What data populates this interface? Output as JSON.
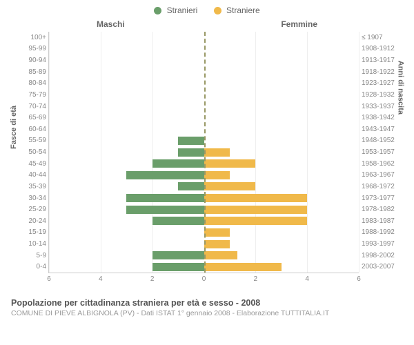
{
  "legend": {
    "male": {
      "label": "Stranieri",
      "color": "#6a9e6a"
    },
    "female": {
      "label": "Straniere",
      "color": "#f0b94a"
    }
  },
  "columns": {
    "left_title": "Maschi",
    "right_title": "Femmine"
  },
  "y_axis_left_title": "Fasce di età",
  "y_axis_right_title": "Anni di nascita",
  "chart": {
    "type": "population-pyramid",
    "x_max": 6,
    "x_ticks": [
      6,
      4,
      2,
      0,
      2,
      4,
      6
    ],
    "bar_height_ratio": 0.72,
    "grid_color": "#eeeeee",
    "axis_color": "#cccccc",
    "center_line_color": "#999966",
    "background_color": "#ffffff",
    "label_fontsize": 10,
    "label_color": "#888888",
    "rows": [
      {
        "age": "100+",
        "birth": "≤ 1907",
        "m": 0,
        "f": 0
      },
      {
        "age": "95-99",
        "birth": "1908-1912",
        "m": 0,
        "f": 0
      },
      {
        "age": "90-94",
        "birth": "1913-1917",
        "m": 0,
        "f": 0
      },
      {
        "age": "85-89",
        "birth": "1918-1922",
        "m": 0,
        "f": 0
      },
      {
        "age": "80-84",
        "birth": "1923-1927",
        "m": 0,
        "f": 0
      },
      {
        "age": "75-79",
        "birth": "1928-1932",
        "m": 0,
        "f": 0
      },
      {
        "age": "70-74",
        "birth": "1933-1937",
        "m": 0,
        "f": 0
      },
      {
        "age": "65-69",
        "birth": "1938-1942",
        "m": 0,
        "f": 0
      },
      {
        "age": "60-64",
        "birth": "1943-1947",
        "m": 0,
        "f": 0
      },
      {
        "age": "55-59",
        "birth": "1948-1952",
        "m": 1,
        "f": 0
      },
      {
        "age": "50-54",
        "birth": "1953-1957",
        "m": 1,
        "f": 1
      },
      {
        "age": "45-49",
        "birth": "1958-1962",
        "m": 2,
        "f": 2
      },
      {
        "age": "40-44",
        "birth": "1963-1967",
        "m": 3,
        "f": 1
      },
      {
        "age": "35-39",
        "birth": "1968-1972",
        "m": 1,
        "f": 2
      },
      {
        "age": "30-34",
        "birth": "1973-1977",
        "m": 3,
        "f": 4
      },
      {
        "age": "25-29",
        "birth": "1978-1982",
        "m": 3,
        "f": 4
      },
      {
        "age": "20-24",
        "birth": "1983-1987",
        "m": 2,
        "f": 4
      },
      {
        "age": "15-19",
        "birth": "1988-1992",
        "m": 0,
        "f": 1
      },
      {
        "age": "10-14",
        "birth": "1993-1997",
        "m": 0,
        "f": 1
      },
      {
        "age": "5-9",
        "birth": "1998-2002",
        "m": 2,
        "f": 1.3
      },
      {
        "age": "0-4",
        "birth": "2003-2007",
        "m": 2,
        "f": 3
      }
    ]
  },
  "footer": {
    "title": "Popolazione per cittadinanza straniera per età e sesso - 2008",
    "subtitle": "COMUNE DI PIEVE ALBIGNOLA (PV) - Dati ISTAT 1° gennaio 2008 - Elaborazione TUTTITALIA.IT"
  }
}
